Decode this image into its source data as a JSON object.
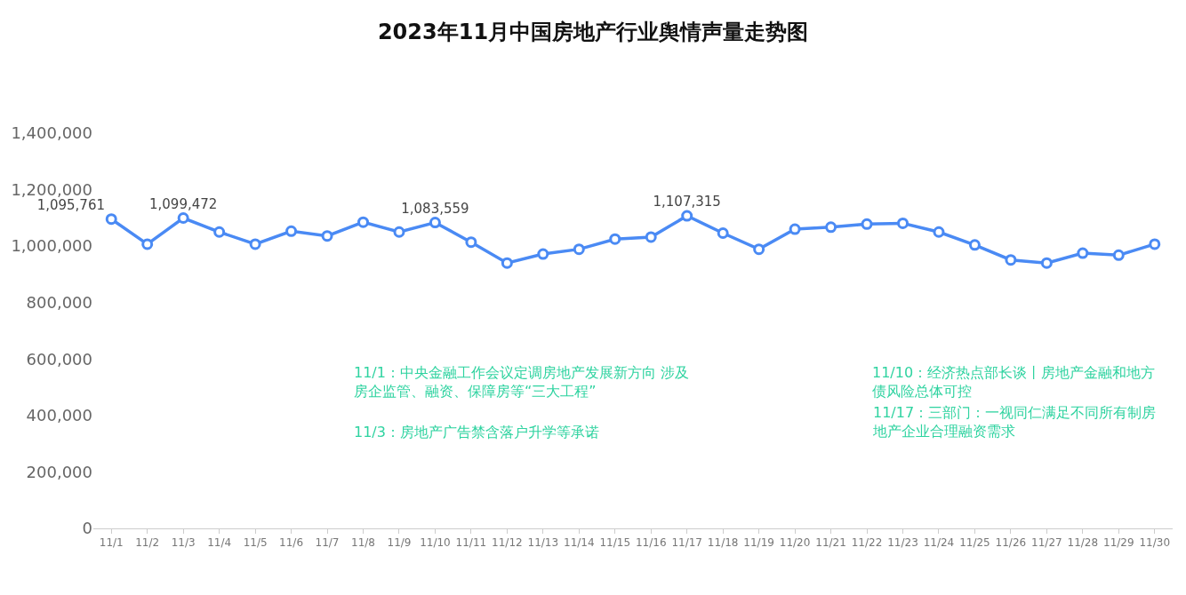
{
  "chart_data": {
    "type": "line",
    "title": "2023年11月中国房地产行业舆情声量走势图",
    "categories": [
      "11/1",
      "11/2",
      "11/3",
      "11/4",
      "11/5",
      "11/6",
      "11/7",
      "11/8",
      "11/9",
      "11/10",
      "11/11",
      "11/12",
      "11/13",
      "11/14",
      "11/15",
      "11/16",
      "11/17",
      "11/18",
      "11/19",
      "11/20",
      "11/21",
      "11/22",
      "11/23",
      "11/24",
      "11/25",
      "11/26",
      "11/27",
      "11/28",
      "11/29",
      "11/30"
    ],
    "series": [
      {
        "color": "#4a8af4",
        "values": [
          1095761,
          1007000,
          1099472,
          1050000,
          1007000,
          1053000,
          1036000,
          1085000,
          1050000,
          1083559,
          1014000,
          940000,
          972000,
          989000,
          1025000,
          1032000,
          1107315,
          1046000,
          989000,
          1060000,
          1067000,
          1078000,
          1081000,
          1050000,
          1004000,
          951000,
          940000,
          975000,
          968000,
          1007000
        ],
        "value_labels": [
          "1,095,761",
          null,
          "1,099,472",
          null,
          null,
          null,
          null,
          null,
          null,
          "1,083,559",
          null,
          null,
          null,
          null,
          null,
          null,
          "1,107,315",
          null,
          null,
          null,
          null,
          null,
          null,
          null,
          null,
          null,
          null,
          null,
          null,
          null
        ]
      }
    ],
    "ylim": [
      0,
      1400000
    ],
    "yticks": [
      {
        "value": 0,
        "label": "0"
      },
      {
        "value": 200000,
        "label": "200,000"
      },
      {
        "value": 400000,
        "label": "400,000"
      },
      {
        "value": 600000,
        "label": "600,000"
      },
      {
        "value": 800000,
        "label": "800,000"
      },
      {
        "value": 1000000,
        "label": "1,000,000"
      },
      {
        "value": 1200000,
        "label": "1,200,000"
      },
      {
        "value": 1400000,
        "label": "1,400,000"
      }
    ],
    "marker": "circle",
    "line_style": "solid",
    "annotations": [
      "11/1：中央金融工作会议定调房地产发展新方向 涉及房企监管、融资、保障房等“三大工程”",
      "11/3：房地产广告禁含落户升学等承诺",
      "11/10：经济热点部长谈丨房地产金融和地方债风险总体可控",
      "11/17：三部门：一视同仁满足不同所有制房地产企业合理融资需求"
    ]
  }
}
